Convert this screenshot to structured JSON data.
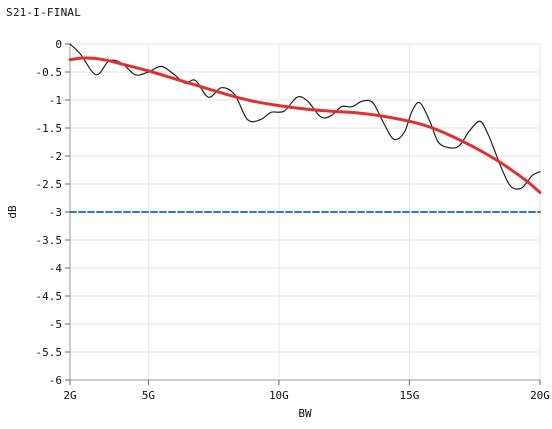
{
  "chart_data": {
    "type": "line",
    "title": "S21-I-FINAL",
    "xlabel": "BW",
    "ylabel": "dB",
    "xlim": [
      2,
      20
    ],
    "ylim": [
      -6,
      0
    ],
    "x_ticks": [
      2,
      5,
      10,
      15,
      20
    ],
    "x_tick_labels": [
      "2G",
      "5G",
      "10G",
      "15G",
      "20G"
    ],
    "y_ticks": [
      0,
      -0.5,
      -1,
      -1.5,
      -2,
      -2.5,
      -3,
      -3.5,
      -4,
      -4.5,
      -5,
      -5.5,
      -6
    ],
    "y_tick_labels": [
      "0",
      "-0.5",
      "-1",
      "-1.5",
      "-2",
      "-2.5",
      "-3",
      "-3.5",
      "-4",
      "-4.5",
      "-5",
      "-5.5",
      "-6"
    ],
    "grid": true,
    "series": [
      {
        "color": "#222222",
        "style": "solid",
        "x": [
          2.0,
          2.4,
          3.0,
          3.5,
          4.0,
          4.5,
          5.0,
          5.5,
          6.0,
          6.4,
          6.8,
          7.3,
          7.8,
          8.3,
          8.8,
          9.3,
          9.7,
          10.2,
          10.7,
          11.1,
          11.6,
          12.0,
          12.4,
          12.8,
          13.2,
          13.6,
          14.0,
          14.4,
          14.8,
          15.1,
          15.4,
          15.8,
          16.1,
          16.5,
          16.9,
          17.3,
          17.7,
          18.0,
          18.3,
          18.6,
          18.9,
          19.3,
          19.7,
          20.0
        ],
        "y": [
          0.0,
          -0.18,
          -0.55,
          -0.3,
          -0.35,
          -0.55,
          -0.5,
          -0.4,
          -0.55,
          -0.7,
          -0.65,
          -0.95,
          -0.78,
          -0.9,
          -1.35,
          -1.35,
          -1.22,
          -1.2,
          -0.95,
          -1.02,
          -1.3,
          -1.28,
          -1.12,
          -1.12,
          -1.02,
          -1.05,
          -1.4,
          -1.7,
          -1.58,
          -1.2,
          -1.05,
          -1.4,
          -1.75,
          -1.85,
          -1.82,
          -1.55,
          -1.38,
          -1.6,
          -1.95,
          -2.3,
          -2.55,
          -2.57,
          -2.35,
          -2.28
        ]
      },
      {
        "color": "#e03030",
        "style": "solid",
        "x": [
          2.0,
          2.5,
          3.0,
          3.5,
          4.0,
          5.0,
          6.0,
          7.0,
          8.0,
          9.0,
          10.0,
          11.0,
          12.0,
          13.0,
          14.0,
          15.0,
          15.5,
          16.0,
          16.5,
          17.0,
          17.5,
          18.0,
          18.5,
          19.0,
          19.5,
          20.0
        ],
        "y": [
          -0.28,
          -0.25,
          -0.26,
          -0.3,
          -0.36,
          -0.48,
          -0.62,
          -0.76,
          -0.9,
          -1.02,
          -1.1,
          -1.16,
          -1.2,
          -1.23,
          -1.29,
          -1.38,
          -1.44,
          -1.52,
          -1.62,
          -1.73,
          -1.85,
          -1.98,
          -2.12,
          -2.28,
          -2.45,
          -2.65
        ]
      },
      {
        "color": "#2b7bc4",
        "style": "dashed",
        "x": [
          2,
          20
        ],
        "y": [
          -3,
          -3
        ]
      }
    ]
  }
}
